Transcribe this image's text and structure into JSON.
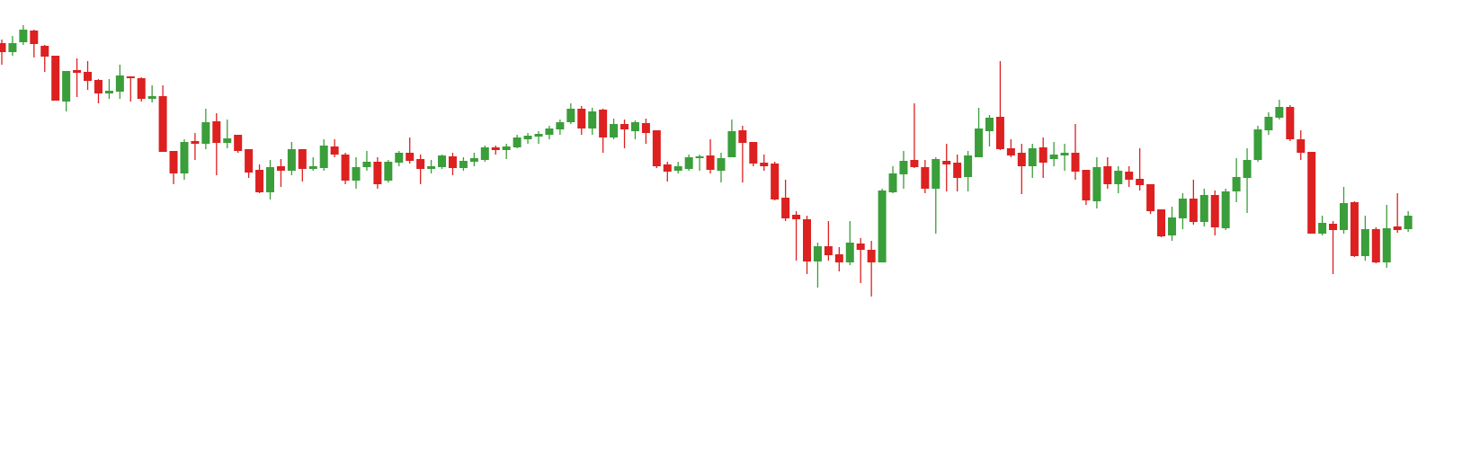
{
  "chart_data": {
    "type": "candlestick",
    "up_color": "#3a9e3a",
    "down_color": "#dd2020",
    "ylim": [
      -3,
      500
    ],
    "open": [
      452,
      442,
      453,
      466,
      449,
      438,
      387,
      422,
      420,
      411,
      396,
      398,
      415,
      413,
      390,
      393,
      332,
      307,
      343,
      340,
      365,
      341,
      350,
      334,
      311,
      286,
      315,
      310,
      334,
      312,
      313,
      337,
      328,
      299,
      314,
      320,
      299,
      319,
      330,
      323,
      312,
      314,
      326,
      313,
      320,
      322,
      336,
      333,
      336,
      345,
      348,
      350,
      356,
      364,
      379,
      357,
      378,
      347,
      362,
      354,
      363,
      355,
      317,
      310,
      312,
      324,
      327,
      310,
      325,
      355,
      342,
      319,
      318,
      280,
      261,
      256,
      209,
      226,
      217,
      208,
      229,
      222,
      208,
      286,
      306,
      322,
      314,
      290,
      321,
      319,
      303,
      325,
      354,
      370,
      335,
      330,
      315,
      336,
      323,
      327,
      330,
      311,
      276,
      315,
      295,
      309,
      301,
      295,
      267,
      238,
      257,
      279,
      253,
      283,
      246,
      287,
      302,
      322,
      355,
      369,
      381,
      345,
      331,
      240,
      251,
      244,
      275,
      215,
      245,
      208,
      248,
      245
    ],
    "high": [
      456,
      460,
      472,
      467,
      450,
      438,
      421,
      435,
      432,
      412,
      412,
      428,
      415,
      414,
      405,
      405,
      332,
      345,
      352,
      379,
      374,
      367,
      350,
      334,
      317,
      322,
      323,
      342,
      334,
      325,
      345,
      345,
      330,
      325,
      332,
      325,
      322,
      332,
      347,
      328,
      322,
      328,
      330,
      325,
      330,
      338,
      338,
      340,
      350,
      352,
      354,
      360,
      367,
      385,
      382,
      380,
      379,
      368,
      367,
      366,
      368,
      355,
      320,
      320,
      328,
      328,
      345,
      330,
      367,
      360,
      342,
      328,
      320,
      300,
      265,
      260,
      230,
      254,
      225,
      254,
      235,
      232,
      290,
      315,
      332,
      385,
      322,
      325,
      340,
      328,
      332,
      380,
      372,
      432,
      345,
      340,
      340,
      347,
      342,
      340,
      362,
      311,
      325,
      325,
      315,
      315,
      335,
      295,
      267,
      270,
      285,
      300,
      290,
      288,
      290,
      324,
      335,
      360,
      375,
      389,
      383,
      355,
      331,
      260,
      254,
      292,
      276,
      260,
      247,
      272,
      285,
      265
    ],
    "low": [
      428,
      438,
      450,
      436,
      420,
      388,
      376,
      392,
      400,
      385,
      390,
      390,
      387,
      387,
      386,
      331,
      295,
      300,
      322,
      334,
      305,
      335,
      330,
      302,
      285,
      278,
      292,
      305,
      298,
      310,
      310,
      325,
      295,
      290,
      310,
      290,
      297,
      315,
      318,
      295,
      307,
      312,
      305,
      310,
      315,
      320,
      328,
      323,
      335,
      340,
      340,
      345,
      350,
      362,
      350,
      350,
      330,
      345,
      335,
      345,
      340,
      313,
      298,
      307,
      310,
      310,
      307,
      297,
      325,
      297,
      315,
      310,
      277,
      254,
      210,
      195,
      180,
      210,
      198,
      205,
      185,
      170,
      208,
      285,
      290,
      313,
      285,
      240,
      287,
      287,
      287,
      325,
      337,
      333,
      325,
      284,
      302,
      302,
      315,
      310,
      300,
      272,
      268,
      290,
      285,
      292,
      288,
      262,
      236,
      232,
      245,
      250,
      248,
      238,
      244,
      275,
      263,
      320,
      350,
      367,
      343,
      322,
      240,
      238,
      195,
      240,
      214,
      210,
      207,
      202,
      241,
      242
    ],
    "close": [
      442,
      452,
      467,
      451,
      437,
      388,
      421,
      419,
      410,
      396,
      399,
      416,
      413,
      390,
      393,
      331,
      307,
      342,
      340,
      364,
      341,
      346,
      332,
      308,
      286,
      314,
      310,
      334,
      312,
      315,
      338,
      328,
      299,
      314,
      320,
      295,
      320,
      330,
      321,
      312,
      315,
      327,
      313,
      321,
      324,
      336,
      333,
      337,
      347,
      349,
      351,
      357,
      364,
      379,
      357,
      376,
      347,
      362,
      356,
      364,
      352,
      315,
      309,
      315,
      325,
      326,
      311,
      324,
      354,
      341,
      318,
      315,
      278,
      257,
      256,
      209,
      226,
      216,
      208,
      230,
      222,
      208,
      288,
      307,
      321,
      314,
      290,
      323,
      317,
      302,
      327,
      357,
      369,
      334,
      327,
      315,
      335,
      319,
      328,
      330,
      309,
      277,
      314,
      295,
      310,
      300,
      294,
      265,
      237,
      258,
      279,
      253,
      283,
      247,
      287,
      303,
      322,
      356,
      370,
      381,
      345,
      330,
      240,
      252,
      244,
      274,
      215,
      245,
      208,
      246,
      244,
      260
    ]
  }
}
